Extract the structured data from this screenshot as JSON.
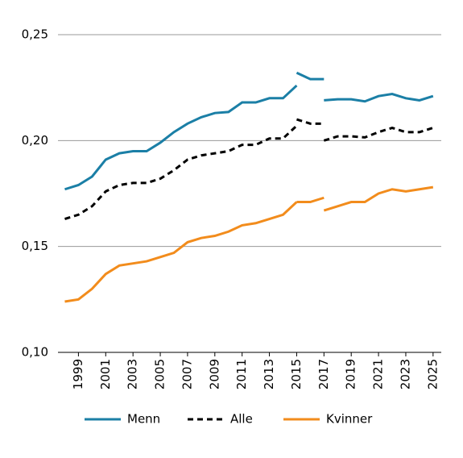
{
  "chart_data": {
    "type": "line",
    "x": [
      1998,
      1999,
      2000,
      2001,
      2002,
      2003,
      2004,
      2005,
      2006,
      2007,
      2008,
      2009,
      2010,
      2011,
      2012,
      2013,
      2014,
      2015,
      2015,
      2015,
      2016,
      2017,
      2017,
      2017,
      2018,
      2019,
      2020,
      2021,
      2022,
      2023,
      2024,
      2025
    ],
    "series": [
      {
        "name": "Menn",
        "color": "#1b7fa6",
        "style": "solid",
        "values": [
          0.177,
          0.179,
          0.183,
          0.191,
          0.194,
          0.195,
          0.195,
          0.199,
          0.204,
          0.208,
          0.211,
          0.213,
          0.2135,
          0.218,
          0.218,
          0.22,
          0.22,
          0.226,
          null,
          0.232,
          0.229,
          0.229,
          null,
          0.219,
          0.2195,
          0.2195,
          0.2185,
          0.221,
          0.222,
          0.22,
          0.219,
          0.221
        ]
      },
      {
        "name": "Alle",
        "color": "#000000",
        "style": "dashed",
        "values": [
          0.163,
          0.165,
          0.169,
          0.176,
          0.179,
          0.18,
          0.18,
          0.182,
          0.186,
          0.191,
          0.193,
          0.194,
          0.195,
          0.198,
          0.198,
          0.201,
          0.201,
          0.207,
          null,
          0.21,
          0.208,
          0.208,
          null,
          0.2,
          0.202,
          0.202,
          0.2015,
          0.204,
          0.206,
          0.204,
          0.204,
          0.206
        ]
      },
      {
        "name": "Kvinner",
        "color": "#f28c1c",
        "style": "solid",
        "values": [
          0.124,
          0.125,
          0.13,
          0.137,
          0.141,
          0.142,
          0.143,
          0.145,
          0.147,
          0.152,
          0.154,
          0.155,
          0.157,
          0.16,
          0.161,
          0.163,
          0.165,
          0.171,
          null,
          0.171,
          0.171,
          0.173,
          null,
          0.167,
          0.169,
          0.171,
          0.171,
          0.175,
          0.177,
          0.176,
          0.177,
          0.178
        ]
      }
    ],
    "xlim": [
      1997.5,
      2025.6
    ],
    "xticks": [
      1999,
      2001,
      2003,
      2005,
      2007,
      2009,
      2011,
      2013,
      2015,
      2017,
      2019,
      2021,
      2023,
      2025
    ],
    "ylim": [
      0.1,
      0.25
    ],
    "yticks": [
      {
        "value": 0.1,
        "label": "0,10"
      },
      {
        "value": 0.15,
        "label": "0,15"
      },
      {
        "value": 0.2,
        "label": "0,20"
      },
      {
        "value": 0.25,
        "label": "0,25"
      }
    ],
    "grid": true,
    "legend": "bottom"
  }
}
